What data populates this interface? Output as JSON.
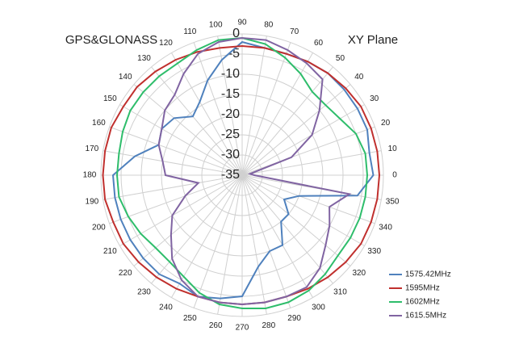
{
  "chart_data": {
    "type": "polar",
    "title": "GPS&GLONASS",
    "subtitle": "XY Plane",
    "angles": [
      0,
      10,
      20,
      30,
      40,
      50,
      60,
      70,
      80,
      90,
      100,
      110,
      120,
      130,
      140,
      150,
      160,
      170,
      180,
      190,
      200,
      210,
      220,
      230,
      240,
      250,
      260,
      270,
      280,
      290,
      300,
      310,
      320,
      330,
      340,
      350
    ],
    "rlim": [
      -35,
      0
    ],
    "rticks": [
      -35,
      -30,
      -25,
      -20,
      -15,
      -10,
      -5,
      0
    ],
    "grid": true,
    "legend": "bottom-right",
    "series": [
      {
        "name": "1575.42MHz",
        "color": "#4f81bd",
        "values": [
          -2.5,
          -3,
          -2,
          -2,
          -2,
          -2,
          -2.5,
          -3,
          -3,
          -2,
          -6,
          -10,
          -14,
          -16,
          -13,
          -12,
          -13,
          -8,
          -3,
          -3,
          -3,
          -3,
          -3,
          -3,
          -4,
          -3,
          -4,
          -5,
          -12,
          -15,
          -15,
          -20,
          -20,
          -23,
          -20,
          -6
        ]
      },
      {
        "name": "1595MHz",
        "color": "#c0302e",
        "values": [
          -1,
          -1,
          -1,
          -1,
          -1.5,
          -2,
          -2.5,
          -3,
          -3,
          -3,
          -3,
          -2.5,
          -2,
          -1.5,
          -1,
          -1,
          -0.5,
          -0.5,
          -0.5,
          -0.5,
          -1,
          -1,
          -1.5,
          -2,
          -2.5,
          -3,
          -3,
          -3,
          -3,
          -3,
          -2.5,
          -2,
          -1.5,
          -1,
          -1,
          -1
        ]
      },
      {
        "name": "1602MHz",
        "color": "#2ebd6b",
        "values": [
          -4,
          -4,
          -5,
          -7,
          -8,
          -8,
          -6,
          -4,
          -2,
          -1,
          -1,
          -2,
          -3,
          -3,
          -3,
          -3,
          -3.5,
          -4,
          -4,
          -4,
          -5,
          -6,
          -7,
          -7,
          -6,
          -4,
          -2.5,
          -2,
          -1.5,
          -1.5,
          -2,
          -3,
          -4,
          -4,
          -4,
          -4
        ]
      },
      {
        "name": "1615.5MHz",
        "color": "#8064a2",
        "values": [
          -32,
          -33,
          -22,
          -15,
          -10,
          -4,
          -3,
          -2,
          -1,
          -1,
          -1.5,
          -3,
          -6,
          -9,
          -10,
          -12,
          -13,
          -15,
          -16,
          -24,
          -20,
          -15,
          -12,
          -8,
          -5,
          -3,
          -3,
          -3,
          -3,
          -3,
          -3,
          -5,
          -8,
          -10,
          -12,
          -8
        ]
      }
    ]
  }
}
